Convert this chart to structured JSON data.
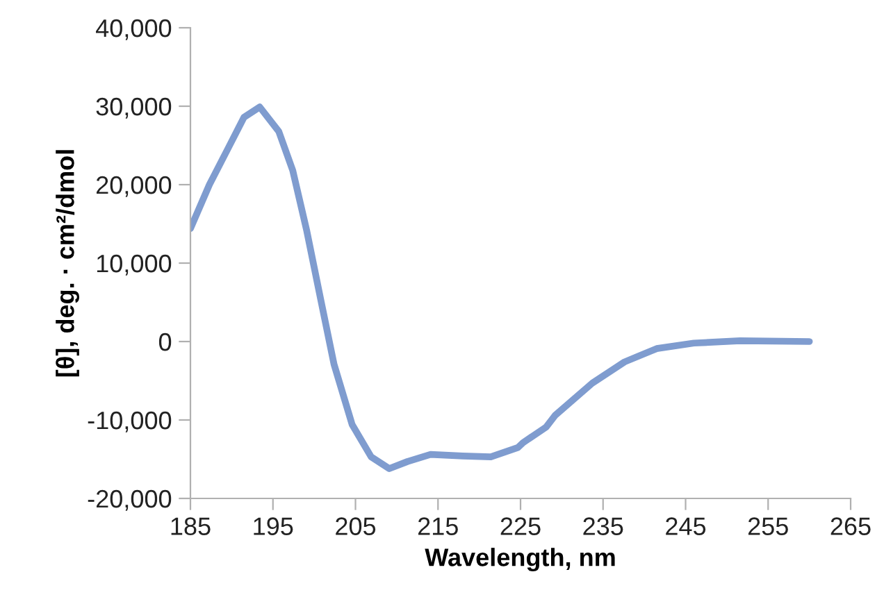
{
  "chart_data": {
    "type": "line",
    "xlabel": "Wavelength, nm",
    "ylabel": "[θ], deg. · cm²/dmol",
    "series": [
      {
        "color": "#7f9ccf",
        "x": [
          185,
          187.3,
          189.6,
          191.5,
          193.4,
          195.7,
          197.4,
          199.1,
          200.8,
          202.4,
          204.6,
          206.9,
          209.1,
          211.3,
          214.1,
          218,
          221.4,
          224.7,
          225.3,
          228.1,
          229.2,
          233.7,
          237.6,
          241.5,
          246,
          251.6,
          260
        ],
        "values": [
          14400,
          20000,
          24700,
          28600,
          29900,
          26800,
          21800,
          14100,
          5300,
          -2900,
          -10600,
          -14700,
          -16200,
          -15300,
          -14400,
          -14600,
          -14700,
          -13500,
          -12900,
          -10900,
          -9400,
          -5300,
          -2600,
          -900,
          -200,
          100,
          0
        ]
      }
    ],
    "xlim": [
      185,
      265
    ],
    "xticks": [
      185,
      195,
      205,
      215,
      225,
      235,
      245,
      255,
      265
    ],
    "ylim": [
      -20000,
      40000
    ],
    "yticks": [
      {
        "value": -20000,
        "label": "-20,000"
      },
      {
        "value": -10000,
        "label": "-10,000"
      },
      0,
      {
        "value": 10000,
        "label": "10,000"
      },
      {
        "value": 20000,
        "label": "20,000"
      },
      {
        "value": 30000,
        "label": "30,000"
      },
      {
        "value": 40000,
        "label": "40,000"
      }
    ],
    "grid": false,
    "legend": false
  }
}
